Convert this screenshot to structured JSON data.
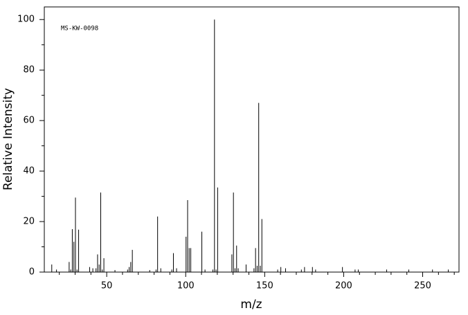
{
  "chart_data": {
    "type": "spectrum",
    "annotation": "MS-KW-0098",
    "xlabel": "m/z",
    "ylabel": "Relative Intensity",
    "x": [
      15,
      18,
      26,
      27,
      28,
      29,
      30,
      31,
      32,
      39,
      41,
      43,
      44,
      45,
      46,
      47,
      48,
      55,
      63,
      64,
      65,
      66,
      77,
      81,
      82,
      84,
      91,
      92,
      94,
      100,
      101,
      102,
      103,
      110,
      112,
      117,
      118,
      119,
      120,
      129,
      130,
      131,
      132,
      133,
      138,
      143,
      144,
      145,
      146,
      147,
      148,
      158,
      160,
      163,
      173,
      175,
      180,
      182,
      199,
      207,
      209,
      227,
      241,
      256,
      266
    ],
    "values": [
      3,
      1,
      4,
      1,
      17,
      12,
      29.5,
      1,
      16.8,
      2,
      1.5,
      1.5,
      7,
      3,
      31.5,
      1,
      5.5,
      0.8,
      1,
      2,
      4,
      8.8,
      0.8,
      1,
      22,
      1.5,
      1,
      7.5,
      1.5,
      14,
      28.5,
      9.5,
      9.5,
      16,
      1,
      1,
      100,
      1,
      33.5,
      7,
      31.5,
      1.5,
      10.5,
      1.5,
      3,
      1.5,
      9.5,
      2.5,
      67,
      2.5,
      21,
      1,
      2,
      1.5,
      1,
      2,
      2,
      1,
      2,
      1,
      1,
      1,
      1,
      1,
      1
    ],
    "xlim": [
      10.5,
      273
    ],
    "ylim": [
      0,
      105
    ],
    "xticks": [
      50,
      100,
      150,
      200,
      250
    ],
    "xminorticks": [
      20,
      30,
      40,
      60,
      70,
      80,
      90,
      110,
      120,
      130,
      140,
      160,
      170,
      180,
      190,
      210,
      220,
      230,
      240,
      260,
      270
    ],
    "yticks": [
      0,
      20,
      40,
      60,
      80,
      100
    ],
    "yminorticks": [
      10,
      30,
      50,
      70,
      90
    ],
    "color": "#000000"
  }
}
